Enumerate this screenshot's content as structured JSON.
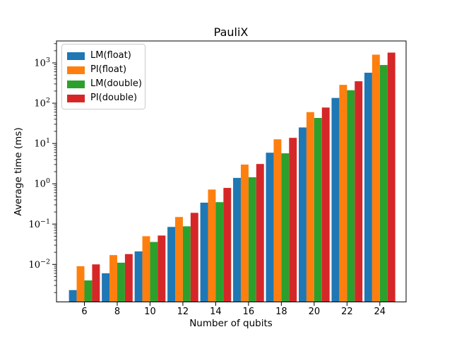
{
  "chart_data": {
    "type": "bar",
    "title": "PauliX",
    "xlabel": "Number of qubits",
    "ylabel": "Average time (ms)",
    "yscale": "log",
    "grid": false,
    "legend_position": "upper left",
    "categories": [
      6,
      8,
      10,
      12,
      14,
      16,
      18,
      20,
      22,
      24
    ],
    "series": [
      {
        "name": "LM(float)",
        "color": "#1f77b4",
        "values": [
          0.0023,
          0.006,
          0.021,
          0.085,
          0.34,
          1.4,
          5.9,
          25,
          135,
          570
        ]
      },
      {
        "name": "PI(float)",
        "color": "#ff7f0e",
        "values": [
          0.009,
          0.017,
          0.05,
          0.15,
          0.72,
          3.0,
          12.7,
          60,
          285,
          1600
        ]
      },
      {
        "name": "LM(double)",
        "color": "#2ca02c",
        "values": [
          0.004,
          0.011,
          0.036,
          0.088,
          0.35,
          1.45,
          5.7,
          43,
          210,
          885
        ]
      },
      {
        "name": "PI(double)",
        "color": "#d62728",
        "values": [
          0.01,
          0.018,
          0.052,
          0.19,
          0.79,
          3.1,
          13.8,
          78,
          350,
          1800
        ]
      }
    ],
    "xlim": [
      4.3,
      25.6
    ],
    "ylim": [
      0.00117,
      3500
    ],
    "y_tick_exponents": [
      -2,
      -1,
      0,
      1,
      2,
      3
    ],
    "x_tick_labels": [
      "6",
      "8",
      "10",
      "12",
      "14",
      "16",
      "18",
      "20",
      "22",
      "24"
    ],
    "bar_width_units": 0.47,
    "axis_color": "#000000"
  }
}
